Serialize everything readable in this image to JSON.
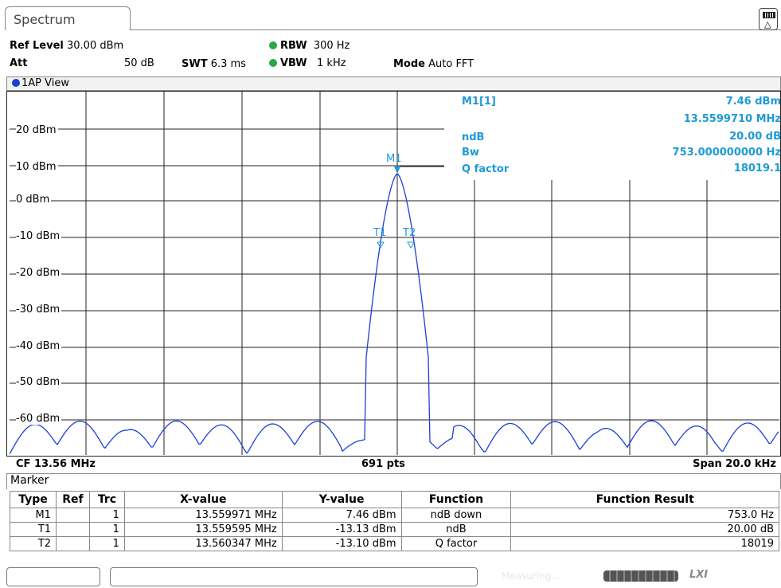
{
  "tab": {
    "title": "Spectrum"
  },
  "header": {
    "ref_level_label": "Ref Level",
    "ref_level_value": "30.00 dBm",
    "att_label": "Att",
    "att_value": "50 dB",
    "swt_label": "SWT",
    "swt_value": "6.3 ms",
    "rbw_label": "RBW",
    "rbw_value": "300 Hz",
    "vbw_label": "VBW",
    "vbw_value": "1 kHz",
    "mode_label": "Mode",
    "mode_value": "Auto FFT"
  },
  "view": {
    "label": "1AP View"
  },
  "y_axis": {
    "ticks": [
      "20 dBm",
      "10 dBm",
      "0 dBm",
      "-10 dBm",
      "-20 dBm",
      "-30 dBm",
      "-40 dBm",
      "-50 dBm",
      "-60 dBm"
    ]
  },
  "marker_info": {
    "m1_label": "M1[1]",
    "m1_level": "7.46 dBm",
    "m1_freq": "13.5599710 MHz",
    "ndb_label": "ndB",
    "ndb_value": "20.00 dB",
    "bw_label": "Bw",
    "bw_value": "753.000000000 Hz",
    "q_label": "Q factor",
    "q_value": "18019.1"
  },
  "plot_markers": {
    "m1": "M1",
    "t1": "T1",
    "t2": "T2"
  },
  "footer": {
    "cf": "CF 13.56 MHz",
    "pts": "691 pts",
    "span": "Span 20.0 kHz"
  },
  "marker_table": {
    "title": "Marker",
    "headers": [
      "Type",
      "Ref",
      "Trc",
      "X-value",
      "Y-value",
      "Function",
      "Function Result"
    ],
    "rows": [
      {
        "type": "M1",
        "ref": "",
        "trc": "1",
        "x": "13.559971 MHz",
        "y": "7.46 dBm",
        "func": "ndB down",
        "result": "753.0 Hz"
      },
      {
        "type": "T1",
        "ref": "",
        "trc": "1",
        "x": "13.559595 MHz",
        "y": "-13.13 dBm",
        "func": "ndB",
        "result": "20.00 dB"
      },
      {
        "type": "T2",
        "ref": "",
        "trc": "1",
        "x": "13.560347 MHz",
        "y": "-13.10 dBm",
        "func": "Q factor",
        "result": "18019"
      }
    ]
  },
  "status": {
    "measuring": "Measuring...",
    "progress_fraction": 0.9,
    "lxi": "LXI"
  },
  "colors": {
    "trace": "#1d3fd6",
    "marker_text": "#1e9ad6",
    "led_green": "#2aa84a"
  }
}
